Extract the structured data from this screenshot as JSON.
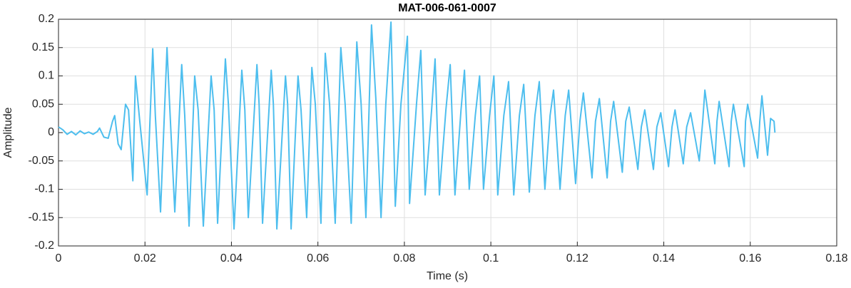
{
  "chart_data": {
    "type": "line",
    "title": "MAT-006-061-0007",
    "x_label": "Time (s)",
    "y_label": "Amplitude",
    "grid": true,
    "xlim": [
      0,
      0.18
    ],
    "xticks": [
      0,
      0.02,
      0.04,
      0.06,
      0.08,
      0.1,
      0.12,
      0.14,
      0.16,
      0.18
    ],
    "ylim": [
      -0.2,
      0.2
    ],
    "yticks": [
      -0.2,
      -0.15,
      -0.1,
      -0.05,
      0,
      0.05,
      0.1,
      0.15,
      0.2
    ],
    "x": [
      0,
      0.001,
      0.002,
      0.003,
      0.004,
      0.005,
      0.006,
      0.007,
      0.008,
      0.009,
      0.0095,
      0.0105,
      0.0115,
      0.0125,
      0.013,
      0.0138,
      0.0145,
      0.0155,
      0.0162,
      0.0172,
      0.0178,
      0.0188,
      0.0205,
      0.0218,
      0.0224,
      0.0236,
      0.0251,
      0.0257,
      0.0269,
      0.0285,
      0.0292,
      0.0302,
      0.0315,
      0.0323,
      0.0335,
      0.0353,
      0.036,
      0.0368,
      0.0386,
      0.0393,
      0.0406,
      0.0424,
      0.0431,
      0.0439,
      0.0459,
      0.0464,
      0.0472,
      0.0492,
      0.0497,
      0.0505,
      0.0525,
      0.053,
      0.0538,
      0.0554,
      0.0561,
      0.0574,
      0.0586,
      0.0594,
      0.0607,
      0.0617,
      0.0627,
      0.064,
      0.0653,
      0.0663,
      0.0677,
      0.069,
      0.07,
      0.0711,
      0.0724,
      0.0734,
      0.0746,
      0.0757,
      0.0769,
      0.0779,
      0.0792,
      0.0807,
      0.0812,
      0.0828,
      0.0838,
      0.0848,
      0.0863,
      0.0871,
      0.0881,
      0.0896,
      0.0906,
      0.0917,
      0.0931,
      0.0939,
      0.095,
      0.0964,
      0.0974,
      0.0983,
      0.0997,
      0.1007,
      0.1016,
      0.103,
      0.1041,
      0.1053,
      0.1066,
      0.1076,
      0.1089,
      0.1102,
      0.1112,
      0.1125,
      0.1137,
      0.1145,
      0.116,
      0.1172,
      0.118,
      0.1196,
      0.1206,
      0.1214,
      0.1234,
      0.1242,
      0.1251,
      0.1269,
      0.1277,
      0.1284,
      0.1304,
      0.1312,
      0.132,
      0.134,
      0.1348,
      0.1356,
      0.1376,
      0.1384,
      0.1393,
      0.1411,
      0.1419,
      0.1426,
      0.1445,
      0.1453,
      0.1462,
      0.1482,
      0.149,
      0.1495,
      0.1518,
      0.1523,
      0.1528,
      0.1551,
      0.1556,
      0.1561,
      0.1586,
      0.1589,
      0.1594,
      0.1617,
      0.1622,
      0.1627,
      0.164,
      0.1647,
      0.1655,
      0.1657
    ],
    "series": [
      {
        "color": "#4dbeee",
        "values": [
          0.01,
          0.005,
          -0.003,
          0.002,
          -0.004,
          0.003,
          -0.002,
          0.001,
          -0.003,
          0.002,
          0.008,
          -0.008,
          -0.01,
          0.02,
          0.03,
          -0.02,
          -0.03,
          0.05,
          0.04,
          -0.085,
          0.1,
          0.02,
          -0.11,
          0.148,
          0.03,
          -0.14,
          0.15,
          0.05,
          -0.14,
          0.12,
          0.03,
          -0.165,
          0.1,
          0.04,
          -0.165,
          0.1,
          0.04,
          -0.16,
          0.13,
          0.05,
          -0.17,
          0.11,
          0.04,
          -0.15,
          0.12,
          0.05,
          -0.16,
          0.11,
          0.05,
          -0.17,
          0.1,
          0.05,
          -0.17,
          0.1,
          0.04,
          -0.15,
          0.115,
          0.05,
          -0.16,
          0.14,
          0.05,
          -0.16,
          0.15,
          0.05,
          -0.16,
          0.16,
          0.05,
          -0.15,
          0.19,
          0.06,
          -0.15,
          0.05,
          0.195,
          -0.13,
          0.05,
          0.17,
          -0.125,
          0.05,
          0.145,
          -0.11,
          0.04,
          0.13,
          -0.11,
          0.04,
          0.12,
          -0.11,
          0.04,
          0.11,
          -0.1,
          0.03,
          0.1,
          -0.1,
          0.03,
          0.1,
          -0.11,
          0.03,
          0.09,
          -0.11,
          0.03,
          0.085,
          -0.105,
          0.03,
          0.09,
          -0.1,
          0.03,
          0.075,
          -0.1,
          0.03,
          0.075,
          -0.09,
          0.02,
          0.07,
          -0.08,
          0.02,
          0.06,
          -0.08,
          0.02,
          0.055,
          -0.07,
          0.02,
          0.045,
          -0.065,
          0.01,
          0.04,
          -0.065,
          0.01,
          0.035,
          -0.06,
          0.01,
          0.04,
          -0.055,
          0.01,
          0.035,
          -0.05,
          0.02,
          0.075,
          -0.055,
          0.02,
          0.055,
          -0.06,
          0.02,
          0.05,
          -0.06,
          0.02,
          0.05,
          -0.045,
          0.02,
          0.065,
          -0.04,
          0.025,
          0.02,
          0
        ]
      }
    ]
  }
}
